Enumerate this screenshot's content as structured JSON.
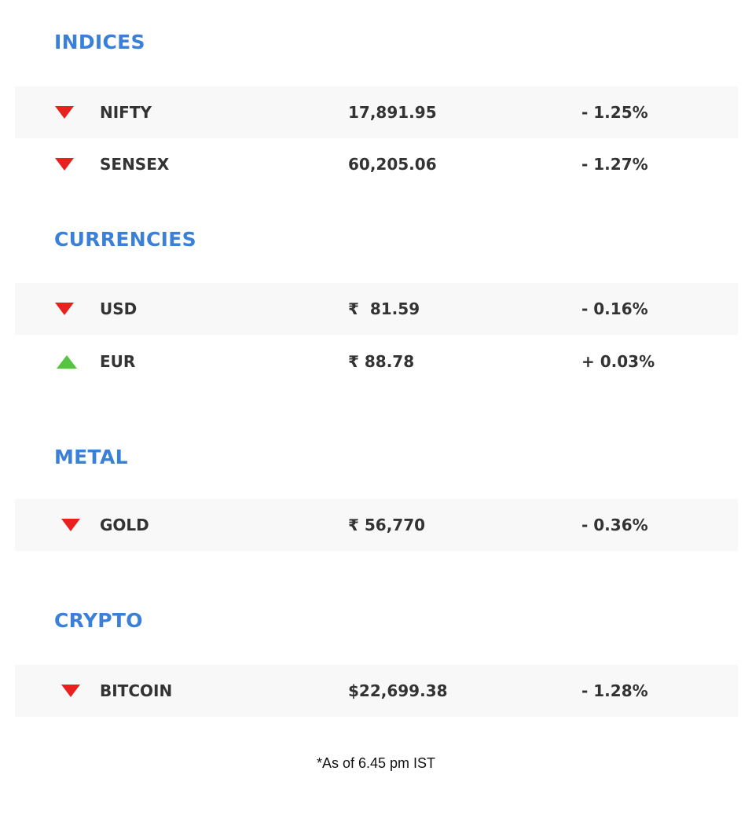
{
  "sections": [
    {
      "title": "INDICES",
      "rows": [
        {
          "name": "NIFTY",
          "value": "17,891.95",
          "change": "- 1.25%",
          "direction": "down"
        },
        {
          "name": "SENSEX",
          "value": "60,205.06",
          "change": "- 1.27%",
          "direction": "down"
        }
      ]
    },
    {
      "title": "CURRENCIES",
      "rows": [
        {
          "name": "USD",
          "value": "₹  81.59",
          "change": "- 0.16%",
          "direction": "down"
        },
        {
          "name": "EUR",
          "value": "₹ 88.78",
          "change": "+ 0.03%",
          "direction": "up"
        }
      ]
    },
    {
      "title": "METAL",
      "rows": [
        {
          "name": "GOLD",
          "value": "₹ 56,770",
          "change": "- 0.36%",
          "direction": "down"
        }
      ]
    },
    {
      "title": "CRYPTO",
      "rows": [
        {
          "name": "BITCOIN",
          "value": "$22,699.38",
          "change": "- 1.28%",
          "direction": "down"
        }
      ]
    }
  ],
  "footer": "*As of 6.45 pm IST",
  "colors": {
    "accent": "#3b80d8",
    "down": "#e8211f",
    "up": "#55c441",
    "row_bg": "#f8f8f8"
  }
}
